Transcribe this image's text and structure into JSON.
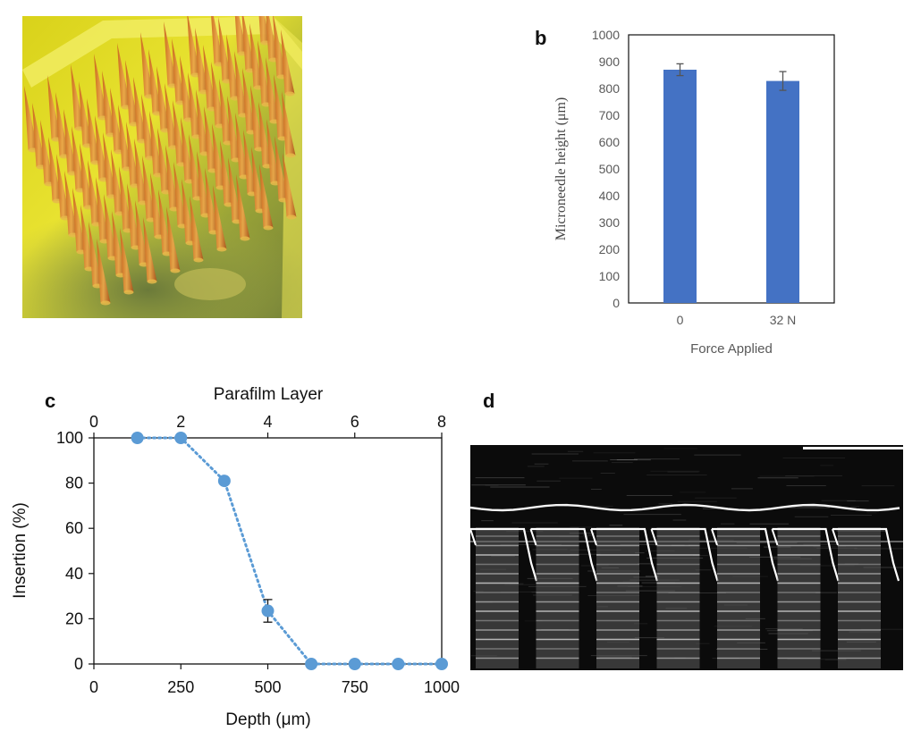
{
  "panels": {
    "a": "a",
    "b": "b",
    "c": "c",
    "d": "d"
  },
  "chart_data": [
    {
      "panel": "b",
      "type": "bar",
      "categories": [
        "0",
        "32 N"
      ],
      "values": [
        870,
        828
      ],
      "errors": [
        22,
        35
      ],
      "xlabel": "Force Applied",
      "ylabel": "Microneedle height (μm)",
      "ylim": [
        0,
        1000
      ],
      "yticks": [
        0,
        100,
        200,
        300,
        400,
        500,
        600,
        700,
        800,
        900,
        1000
      ],
      "bar_color": "#4472C4",
      "grid": false
    },
    {
      "panel": "c",
      "type": "line",
      "x": [
        125,
        250,
        375,
        500,
        625,
        750,
        875,
        1000
      ],
      "values": [
        100,
        100,
        81,
        23.5,
        0,
        0,
        0,
        0
      ],
      "errors": [
        0,
        0,
        0,
        5,
        0,
        0,
        0,
        0
      ],
      "xlabel": "Depth (μm)",
      "x2label": "Parafilm Layer",
      "ylabel": "Insertion (%)",
      "xlim": [
        0,
        1000
      ],
      "xticks": [
        0,
        250,
        500,
        750,
        1000
      ],
      "x2lim": [
        0,
        8
      ],
      "x2ticks": [
        0,
        2,
        4,
        6,
        8
      ],
      "ylim": [
        0,
        100
      ],
      "yticks": [
        0,
        20,
        40,
        60,
        80,
        100
      ],
      "line_style": "dotted",
      "marker_color": "#5B9BD5",
      "grid": false
    }
  ]
}
